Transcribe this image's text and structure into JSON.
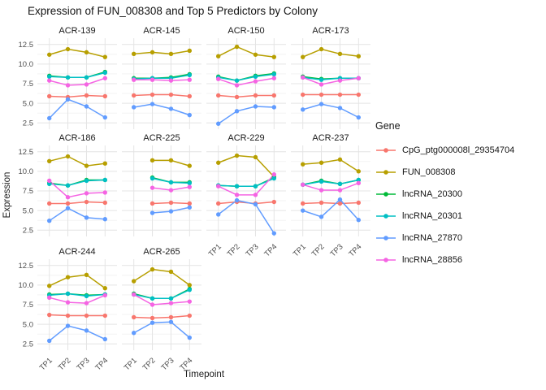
{
  "title": "Expression of FUN_008308 and Top 5 Predictors by Colony",
  "axes": {
    "x_label": "Timepoint",
    "y_label": "Expression",
    "x_ticks": [
      "TP1",
      "TP2",
      "TP3",
      "TP4"
    ],
    "y_ticks": [
      "2.5",
      "5.0",
      "7.5",
      "10.0",
      "12.5"
    ]
  },
  "legend": {
    "title": "Gene",
    "entries": [
      {
        "label": "CpG_ptg000008l_29354704",
        "color": "#F8766D"
      },
      {
        "label": "FUN_008308",
        "color": "#B79F00"
      },
      {
        "label": "lncRNA_20300",
        "color": "#00BA38"
      },
      {
        "label": "lncRNA_20301",
        "color": "#00BFC4"
      },
      {
        "label": "lncRNA_27870",
        "color": "#619CFF"
      },
      {
        "label": "lncRNA_28856",
        "color": "#F564E3"
      }
    ]
  },
  "chart_data": {
    "type": "line",
    "x": [
      "TP1",
      "TP2",
      "TP3",
      "TP4"
    ],
    "ylim": [
      1.7,
      13.3
    ],
    "y_major": [
      2.5,
      5.0,
      7.5,
      10.0,
      12.5
    ],
    "y_minor": [
      3.75,
      6.25,
      8.75,
      11.25
    ],
    "grid": true,
    "legend_position": "right",
    "facets": [
      {
        "name": "ACR-139",
        "row": 0,
        "col": 0,
        "series": [
          {
            "gene": "CpG_ptg000008l_29354704",
            "values": [
              5.9,
              5.8,
              6.0,
              5.9
            ]
          },
          {
            "gene": "FUN_008308",
            "values": [
              11.2,
              11.9,
              11.5,
              10.9
            ]
          },
          {
            "gene": "lncRNA_20300",
            "values": [
              8.5,
              8.3,
              8.3,
              9.0
            ]
          },
          {
            "gene": "lncRNA_20301",
            "values": [
              8.4,
              8.3,
              8.3,
              8.9
            ]
          },
          {
            "gene": "lncRNA_27870",
            "values": [
              3.1,
              5.5,
              4.6,
              3.2
            ]
          },
          {
            "gene": "lncRNA_28856",
            "values": [
              7.9,
              7.3,
              7.4,
              8.2
            ]
          }
        ]
      },
      {
        "name": "ACR-145",
        "row": 0,
        "col": 1,
        "series": [
          {
            "gene": "CpG_ptg000008l_29354704",
            "values": [
              6.0,
              6.1,
              6.1,
              5.9
            ]
          },
          {
            "gene": "FUN_008308",
            "values": [
              11.3,
              11.5,
              11.3,
              11.7
            ]
          },
          {
            "gene": "lncRNA_20300",
            "values": [
              8.2,
              8.2,
              8.3,
              8.7
            ]
          },
          {
            "gene": "lncRNA_20301",
            "values": [
              8.1,
              8.2,
              8.2,
              8.6
            ]
          },
          {
            "gene": "lncRNA_27870",
            "values": [
              4.5,
              4.9,
              4.3,
              3.5
            ]
          },
          {
            "gene": "lncRNA_28856",
            "values": [
              8.0,
              8.0,
              7.9,
              8.0
            ]
          }
        ]
      },
      {
        "name": "ACR-150",
        "row": 0,
        "col": 2,
        "series": [
          {
            "gene": "CpG_ptg000008l_29354704",
            "values": [
              6.0,
              5.8,
              6.0,
              6.0
            ]
          },
          {
            "gene": "FUN_008308",
            "values": [
              11.0,
              12.2,
              11.2,
              10.9
            ]
          },
          {
            "gene": "lncRNA_20300",
            "values": [
              8.4,
              7.9,
              8.5,
              8.8
            ]
          },
          {
            "gene": "lncRNA_20301",
            "values": [
              8.3,
              7.9,
              8.4,
              8.7
            ]
          },
          {
            "gene": "lncRNA_27870",
            "values": [
              2.4,
              4.0,
              4.6,
              4.5
            ]
          },
          {
            "gene": "lncRNA_28856",
            "values": [
              8.1,
              7.3,
              7.8,
              8.2
            ]
          }
        ]
      },
      {
        "name": "ACR-173",
        "row": 0,
        "col": 3,
        "series": [
          {
            "gene": "CpG_ptg000008l_29354704",
            "values": [
              6.1,
              6.1,
              6.1,
              6.1
            ]
          },
          {
            "gene": "FUN_008308",
            "values": [
              10.9,
              11.9,
              11.3,
              11.0
            ]
          },
          {
            "gene": "lncRNA_20300",
            "values": [
              8.4,
              8.1,
              8.2,
              8.2
            ]
          },
          {
            "gene": "lncRNA_20301",
            "values": [
              8.3,
              8.0,
              8.2,
              8.2
            ]
          },
          {
            "gene": "lncRNA_27870",
            "values": [
              4.2,
              4.9,
              4.4,
              3.2
            ]
          },
          {
            "gene": "lncRNA_28856",
            "values": [
              8.3,
              7.4,
              7.9,
              8.2
            ]
          }
        ]
      },
      {
        "name": "ACR-186",
        "row": 1,
        "col": 0,
        "series": [
          {
            "gene": "CpG_ptg000008l_29354704",
            "values": [
              5.9,
              5.9,
              6.1,
              6.0
            ]
          },
          {
            "gene": "FUN_008308",
            "values": [
              11.3,
              11.9,
              10.7,
              11.0
            ]
          },
          {
            "gene": "lncRNA_20300",
            "values": [
              8.5,
              8.2,
              8.9,
              8.9
            ]
          },
          {
            "gene": "lncRNA_20301",
            "values": [
              8.4,
              8.2,
              8.8,
              8.9
            ]
          },
          {
            "gene": "lncRNA_27870",
            "values": [
              3.7,
              5.3,
              4.1,
              3.9
            ]
          },
          {
            "gene": "lncRNA_28856",
            "values": [
              8.8,
              6.7,
              7.2,
              7.3
            ]
          }
        ]
      },
      {
        "name": "ACR-225",
        "row": 1,
        "col": 1,
        "series": [
          {
            "gene": "CpG_ptg000008l_29354704",
            "values": [
              null,
              5.9,
              6.0,
              5.9
            ]
          },
          {
            "gene": "FUN_008308",
            "values": [
              null,
              11.4,
              11.4,
              10.7
            ]
          },
          {
            "gene": "lncRNA_20300",
            "values": [
              null,
              9.2,
              8.6,
              8.6
            ]
          },
          {
            "gene": "lncRNA_20301",
            "values": [
              null,
              9.1,
              8.6,
              8.5
            ]
          },
          {
            "gene": "lncRNA_27870",
            "values": [
              null,
              4.7,
              4.9,
              5.4
            ]
          },
          {
            "gene": "lncRNA_28856",
            "values": [
              null,
              7.9,
              7.6,
              8.0
            ]
          }
        ]
      },
      {
        "name": "ACR-229",
        "row": 1,
        "col": 2,
        "series": [
          {
            "gene": "CpG_ptg000008l_29354704",
            "values": [
              5.9,
              6.1,
              5.9,
              6.1
            ]
          },
          {
            "gene": "FUN_008308",
            "values": [
              11.1,
              12.0,
              11.8,
              9.3
            ]
          },
          {
            "gene": "lncRNA_20300",
            "values": [
              8.2,
              8.1,
              8.1,
              9.2
            ]
          },
          {
            "gene": "lncRNA_20301",
            "values": [
              8.2,
              8.1,
              8.1,
              9.1
            ]
          },
          {
            "gene": "lncRNA_27870",
            "values": [
              4.5,
              6.3,
              5.8,
              2.1
            ]
          },
          {
            "gene": "lncRNA_28856",
            "values": [
              8.1,
              7.0,
              7.0,
              9.6
            ]
          }
        ]
      },
      {
        "name": "ACR-237",
        "row": 1,
        "col": 3,
        "series": [
          {
            "gene": "CpG_ptg000008l_29354704",
            "values": [
              5.9,
              6.0,
              5.9,
              6.0
            ]
          },
          {
            "gene": "FUN_008308",
            "values": [
              10.9,
              11.1,
              11.5,
              10.0
            ]
          },
          {
            "gene": "lncRNA_20300",
            "values": [
              8.3,
              8.8,
              8.4,
              8.9
            ]
          },
          {
            "gene": "lncRNA_20301",
            "values": [
              8.3,
              8.7,
              8.4,
              8.9
            ]
          },
          {
            "gene": "lncRNA_27870",
            "values": [
              5.0,
              4.2,
              6.4,
              3.8
            ]
          },
          {
            "gene": "lncRNA_28856",
            "values": [
              8.3,
              7.6,
              7.6,
              8.5
            ]
          }
        ]
      },
      {
        "name": "ACR-244",
        "row": 2,
        "col": 0,
        "series": [
          {
            "gene": "CpG_ptg000008l_29354704",
            "values": [
              6.2,
              6.1,
              6.1,
              6.1
            ]
          },
          {
            "gene": "FUN_008308",
            "values": [
              9.9,
              11.0,
              11.3,
              9.6
            ]
          },
          {
            "gene": "lncRNA_20300",
            "values": [
              8.8,
              8.9,
              8.7,
              8.8
            ]
          },
          {
            "gene": "lncRNA_20301",
            "values": [
              8.7,
              8.9,
              8.6,
              8.8
            ]
          },
          {
            "gene": "lncRNA_27870",
            "values": [
              2.9,
              4.8,
              4.2,
              3.1
            ]
          },
          {
            "gene": "lncRNA_28856",
            "values": [
              8.4,
              7.8,
              7.7,
              8.7
            ]
          }
        ]
      },
      {
        "name": "ACR-265",
        "row": 2,
        "col": 1,
        "series": [
          {
            "gene": "CpG_ptg000008l_29354704",
            "values": [
              5.9,
              5.8,
              5.9,
              6.1
            ]
          },
          {
            "gene": "FUN_008308",
            "values": [
              10.5,
              12.0,
              11.7,
              10.0
            ]
          },
          {
            "gene": "lncRNA_20300",
            "values": [
              8.9,
              8.3,
              8.3,
              9.5
            ]
          },
          {
            "gene": "lncRNA_20301",
            "values": [
              8.8,
              8.3,
              8.3,
              9.4
            ]
          },
          {
            "gene": "lncRNA_27870",
            "values": [
              3.9,
              5.2,
              5.3,
              3.3
            ]
          },
          {
            "gene": "lncRNA_28856",
            "values": [
              8.8,
              7.5,
              7.7,
              7.9
            ]
          }
        ]
      }
    ]
  }
}
